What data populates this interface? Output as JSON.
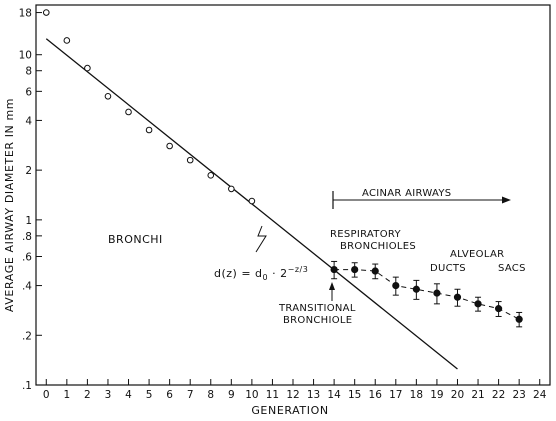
{
  "chart_data": {
    "type": "scatter",
    "xlabel": "GENERATION",
    "ylabel": "AVERAGE AIRWAY DIAMETER IN mm",
    "xlim": [
      -0.5,
      24.5
    ],
    "ylim": [
      0.1,
      20
    ],
    "yscale": "log",
    "x_ticks": [
      0,
      1,
      2,
      3,
      4,
      5,
      6,
      7,
      8,
      9,
      10,
      11,
      12,
      13,
      14,
      15,
      16,
      17,
      18,
      19,
      20,
      21,
      22,
      23,
      24
    ],
    "y_ticks": [
      {
        "value": 0.1,
        "label": ".1"
      },
      {
        "value": 0.2,
        "label": ".2"
      },
      {
        "value": 0.4,
        "label": ".4"
      },
      {
        "value": 0.6,
        "label": ".6"
      },
      {
        "value": 0.8,
        "label": ".8"
      },
      {
        "value": 1,
        "label": "1"
      },
      {
        "value": 2,
        "label": "2"
      },
      {
        "value": 4,
        "label": "4"
      },
      {
        "value": 6,
        "label": "6"
      },
      {
        "value": 8,
        "label": "8"
      },
      {
        "value": 10,
        "label": "10"
      },
      {
        "value": 18,
        "label": "18"
      }
    ],
    "series": [
      {
        "marker": "open-circle",
        "x": [
          0,
          1,
          2,
          3,
          4,
          5,
          6,
          7,
          8,
          9,
          10
        ],
        "y": [
          18,
          12.2,
          8.3,
          5.6,
          4.5,
          3.5,
          2.8,
          2.3,
          1.86,
          1.54,
          1.3
        ]
      },
      {
        "marker": "filled-circle-errorbar",
        "x": [
          14,
          15,
          16,
          17,
          18,
          19,
          20,
          21,
          22,
          23
        ],
        "y": [
          0.5,
          0.5,
          0.49,
          0.4,
          0.38,
          0.36,
          0.34,
          0.31,
          0.29,
          0.25
        ],
        "err": [
          0.06,
          0.05,
          0.05,
          0.05,
          0.05,
          0.05,
          0.04,
          0.03,
          0.03,
          0.025
        ]
      }
    ],
    "fit_line": {
      "x": [
        0,
        20
      ],
      "y": [
        12.5,
        0.125
      ]
    },
    "annotations": {
      "bronchi": "BRONCHI",
      "acinar": "ACINAR AIRWAYS",
      "respiratory_1": "RESPIRATORY",
      "respiratory_2": "BRONCHIOLES",
      "alveolar": "ALVEOLAR",
      "ducts": "DUCTS",
      "sacs": "SACS",
      "transitional_1": "TRANSITIONAL",
      "transitional_2": "BRONCHIOLE",
      "formula_main": "d(z) = d",
      "formula_sub": "0",
      "formula_mid": " · 2",
      "formula_exp": "−z/3"
    }
  }
}
